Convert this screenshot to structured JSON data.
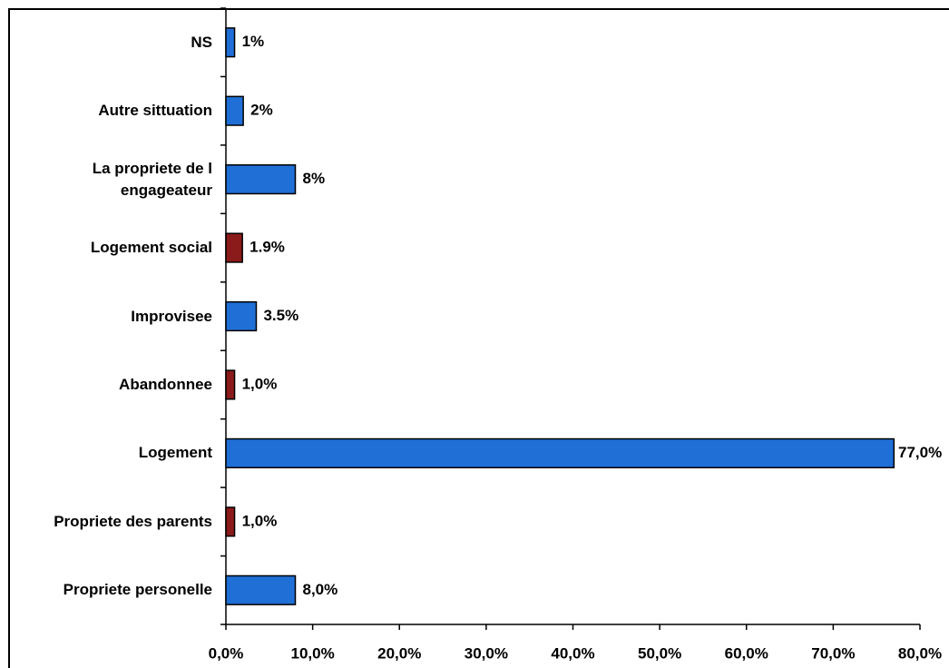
{
  "chart_data": {
    "type": "barh",
    "categories": [
      "NS",
      "Autre sittuation",
      "La propriete de l engageateur",
      "Logement social",
      "Improvisee",
      "Abandonnee",
      "Logement",
      "Propriete des parents",
      "Propriete personelle"
    ],
    "values": [
      1,
      2,
      8,
      1.9,
      3.5,
      1,
      77,
      1,
      8
    ],
    "value_labels": [
      "1%",
      "2%",
      "8%",
      "1.9%",
      "3.5%",
      "1,0%",
      "77,0%",
      "1,0%",
      "8,0%"
    ],
    "colors": [
      "#1f6fd6",
      "#1f6fd6",
      "#1f6fd6",
      "#8b1a1a",
      "#1f6fd6",
      "#8b1a1a",
      "#1f6fd6",
      "#8b1a1a",
      "#1f6fd6"
    ],
    "xlim": [
      0,
      80
    ],
    "xticks": [
      {
        "value": 0,
        "label": "0,0%"
      },
      {
        "value": 10,
        "label": "10,0%"
      },
      {
        "value": 20,
        "label": "20,0%"
      },
      {
        "value": 30,
        "label": "30,0%"
      },
      {
        "value": 40,
        "label": "40,0%"
      },
      {
        "value": 50,
        "label": "50,0%"
      },
      {
        "value": 60,
        "label": "60,0%"
      },
      {
        "value": 70,
        "label": "70,0%"
      },
      {
        "value": 80,
        "label": "80,0%"
      }
    ],
    "grid": false
  }
}
